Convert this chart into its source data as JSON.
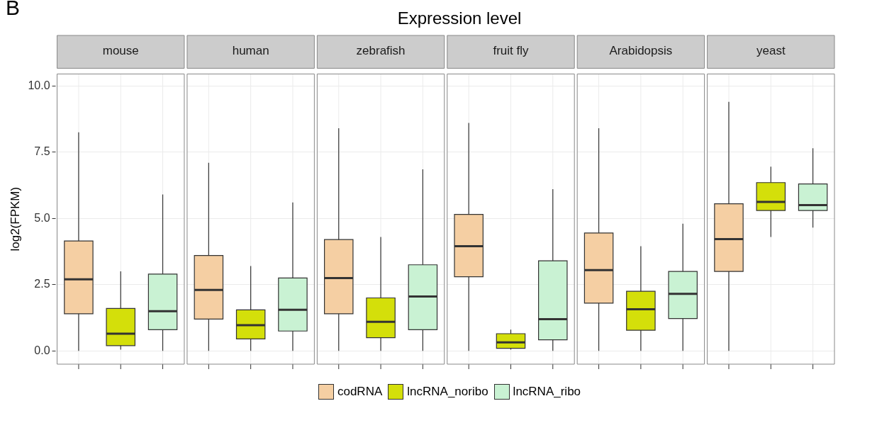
{
  "chart_data": {
    "type": "box",
    "title": "Expression level",
    "annotations": [
      "B"
    ],
    "ylabel": "log2(FPKM)",
    "categories": [
      "mouse",
      "human",
      "zebrafish",
      "fruit fly",
      "Arabidopsis",
      "yeast"
    ],
    "ylim": [
      -0.5,
      10.45
    ],
    "yticks": [
      {
        "value": 0,
        "label": "0.0"
      },
      {
        "value": 2.5,
        "label": "2.5"
      },
      {
        "value": 5,
        "label": "5.0"
      },
      {
        "value": 7.5,
        "label": "7.5"
      },
      {
        "value": 10,
        "label": "10.0"
      }
    ],
    "grid": true,
    "legend": "bottom",
    "series": [
      {
        "name": "codRNA",
        "color": "#f5cfa3",
        "boxes": [
          {
            "low": 0,
            "q1": 1.4,
            "median": 2.7,
            "q3": 4.15,
            "high": 8.25
          },
          {
            "low": 0,
            "q1": 1.2,
            "median": 2.3,
            "q3": 3.6,
            "high": 7.1
          },
          {
            "low": 0,
            "q1": 1.4,
            "median": 2.75,
            "q3": 4.2,
            "high": 8.4
          },
          {
            "low": 0,
            "q1": 2.8,
            "median": 3.95,
            "q3": 5.15,
            "high": 8.6
          },
          {
            "low": 0,
            "q1": 1.8,
            "median": 3.05,
            "q3": 4.45,
            "high": 8.4
          },
          {
            "low": 0,
            "q1": 3.0,
            "median": 4.22,
            "q3": 5.55,
            "high": 9.4
          }
        ]
      },
      {
        "name": "lncRNA_noribo",
        "color": "#d4df0a",
        "boxes": [
          {
            "low": 0.05,
            "q1": 0.2,
            "median": 0.65,
            "q3": 1.6,
            "high": 3.0
          },
          {
            "low": 0,
            "q1": 0.45,
            "median": 0.97,
            "q3": 1.55,
            "high": 3.2
          },
          {
            "low": 0,
            "q1": 0.5,
            "median": 1.1,
            "q3": 2.0,
            "high": 4.3
          },
          {
            "low": 0.05,
            "q1": 0.1,
            "median": 0.32,
            "q3": 0.65,
            "high": 0.8
          },
          {
            "low": 0,
            "q1": 0.78,
            "median": 1.57,
            "q3": 2.25,
            "high": 3.95
          },
          {
            "low": 4.3,
            "q1": 5.3,
            "median": 5.62,
            "q3": 6.35,
            "high": 6.95
          }
        ]
      },
      {
        "name": "lncRNA_ribo",
        "color": "#c9f2d3",
        "boxes": [
          {
            "low": 0,
            "q1": 0.8,
            "median": 1.5,
            "q3": 2.9,
            "high": 5.9
          },
          {
            "low": 0,
            "q1": 0.75,
            "median": 1.55,
            "q3": 2.75,
            "high": 5.6
          },
          {
            "low": 0,
            "q1": 0.8,
            "median": 2.05,
            "q3": 3.25,
            "high": 6.85
          },
          {
            "low": 0,
            "q1": 0.42,
            "median": 1.2,
            "q3": 3.4,
            "high": 6.1
          },
          {
            "low": 0,
            "q1": 1.22,
            "median": 2.15,
            "q3": 3.0,
            "high": 4.8
          },
          {
            "low": 4.65,
            "q1": 5.3,
            "median": 5.5,
            "q3": 6.3,
            "high": 7.65
          }
        ]
      }
    ]
  }
}
